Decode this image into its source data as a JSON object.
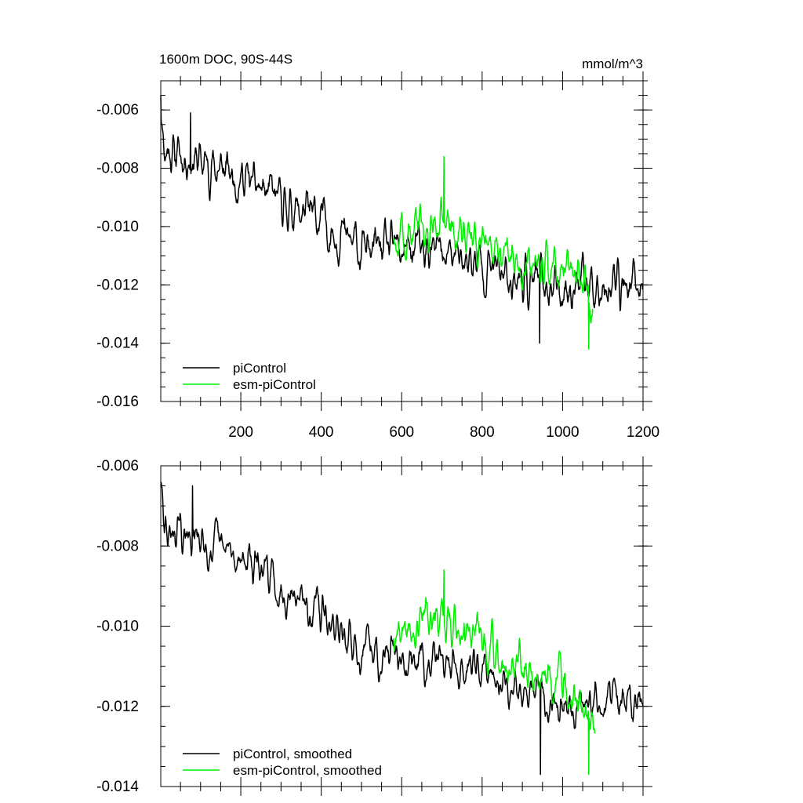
{
  "chart_data": [
    {
      "type": "line",
      "title": "1600m DOC, 90S-44S",
      "units": "mmol/m^3",
      "xlabel": "",
      "ylabel": "",
      "xlim": [
        1,
        1200
      ],
      "ylim": [
        -0.016,
        -0.005
      ],
      "x_ticks": [
        200,
        400,
        600,
        800,
        1000,
        1200
      ],
      "x_tick_labels": [
        "200",
        "400",
        "600",
        "800",
        "1000",
        "1200"
      ],
      "y_ticks": [
        -0.016,
        -0.014,
        -0.012,
        -0.01,
        -0.008,
        -0.006
      ],
      "y_tick_labels": [
        "-0.016",
        "-0.014",
        "-0.012",
        "-0.010",
        "-0.008",
        "-0.006"
      ],
      "legend_position": "bottom-left",
      "series": [
        {
          "name": "piControl",
          "color": "#000000",
          "x_start": 1,
          "x_end": 1200,
          "trend": [
            [
              1,
              -0.0055
            ],
            [
              10,
              -0.0073
            ],
            [
              100,
              -0.0078
            ],
            [
              200,
              -0.0083
            ],
            [
              300,
              -0.0092
            ],
            [
              400,
              -0.0098
            ],
            [
              500,
              -0.0108
            ],
            [
              600,
              -0.0108
            ],
            [
              700,
              -0.0109
            ],
            [
              800,
              -0.0113
            ],
            [
              900,
              -0.0118
            ],
            [
              1000,
              -0.0121
            ],
            [
              1100,
              -0.0119
            ],
            [
              1200,
              -0.0121
            ]
          ],
          "noise": 0.00075,
          "extreme_max": [
            -0.0061,
            75
          ],
          "extreme_min": [
            -0.014,
            943
          ]
        },
        {
          "name": "esm-piControl",
          "color": "#00ee00",
          "x_start": 580,
          "x_end": 1075,
          "trend": [
            [
              580,
              -0.0104
            ],
            [
              700,
              -0.0099
            ],
            [
              800,
              -0.0106
            ],
            [
              900,
              -0.0113
            ],
            [
              1000,
              -0.0115
            ],
            [
              1075,
              -0.0125
            ]
          ],
          "noise": 0.0007,
          "extreme_max": [
            -0.0076,
            705
          ],
          "extreme_min": [
            -0.0142,
            1065
          ]
        }
      ]
    },
    {
      "type": "line",
      "title": "",
      "xlabel": "",
      "ylabel": "",
      "xlim": [
        1,
        1200
      ],
      "ylim": [
        -0.014,
        -0.006
      ],
      "x_ticks": [
        200,
        400,
        600,
        800,
        1000,
        1200
      ],
      "x_tick_labels": [
        "",
        "",
        "",
        "",
        "",
        ""
      ],
      "y_ticks": [
        -0.014,
        -0.012,
        -0.01,
        -0.008,
        -0.006
      ],
      "y_tick_labels": [
        "-0.014",
        "-0.012",
        "-0.010",
        "-0.008",
        "-0.006"
      ],
      "legend_position": "bottom-left",
      "series": [
        {
          "name": "piControl, smoothed",
          "color": "#000000",
          "x_start": 1,
          "x_end": 1200,
          "trend": [
            [
              1,
              -0.0065
            ],
            [
              10,
              -0.0076
            ],
            [
              100,
              -0.0079
            ],
            [
              200,
              -0.0083
            ],
            [
              300,
              -0.009
            ],
            [
              400,
              -0.0097
            ],
            [
              500,
              -0.0107
            ],
            [
              600,
              -0.0107
            ],
            [
              700,
              -0.0108
            ],
            [
              800,
              -0.0112
            ],
            [
              900,
              -0.0116
            ],
            [
              1000,
              -0.0119
            ],
            [
              1100,
              -0.0118
            ],
            [
              1200,
              -0.012
            ]
          ],
          "noise": 0.0005,
          "extreme_max": [
            -0.0065,
            80
          ],
          "extreme_min": [
            -0.0137,
            945
          ]
        },
        {
          "name": "esm-piControl, smoothed",
          "color": "#00ee00",
          "x_start": 580,
          "x_end": 1080,
          "trend": [
            [
              580,
              -0.0103
            ],
            [
              700,
              -0.0098
            ],
            [
              800,
              -0.0104
            ],
            [
              900,
              -0.0112
            ],
            [
              1000,
              -0.0114
            ],
            [
              1080,
              -0.0124
            ]
          ],
          "noise": 0.0005,
          "extreme_max": [
            -0.0086,
            705
          ],
          "extreme_min": [
            -0.0137,
            1065
          ]
        }
      ]
    }
  ]
}
